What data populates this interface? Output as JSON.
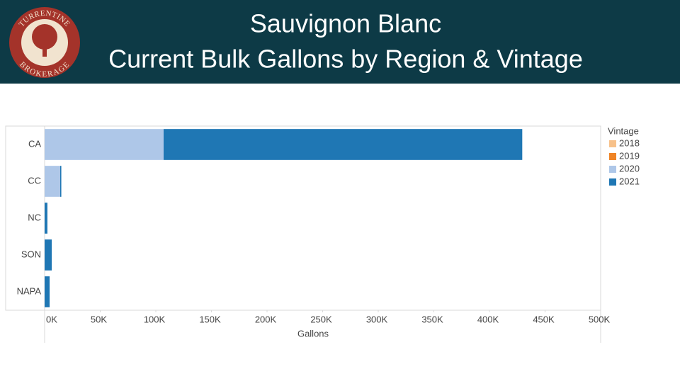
{
  "header": {
    "title_line1": "Sauvignon Blanc",
    "title_line2": "Current Bulk Gallons by Region & Vintage",
    "logo_top": "TURRENTINE",
    "logo_bottom": "BROKERAGE"
  },
  "chart_data": {
    "type": "bar",
    "orientation": "horizontal",
    "stacked": true,
    "categories": [
      "CA",
      "CC",
      "NC",
      "SON",
      "NAPA"
    ],
    "series": [
      {
        "name": "2018",
        "color": "#f7c18a",
        "values": [
          0,
          0,
          0,
          0,
          0
        ]
      },
      {
        "name": "2019",
        "color": "#ef8426",
        "values": [
          0,
          0,
          0,
          0,
          0
        ]
      },
      {
        "name": "2020",
        "color": "#aec7e8",
        "values": [
          107000,
          14000,
          0,
          0,
          0
        ]
      },
      {
        "name": "2021",
        "color": "#1f77b4",
        "values": [
          322500,
          1000,
          2500,
          6400,
          4500
        ]
      }
    ],
    "legend_title": "Vintage",
    "legend": "right",
    "x_label": "Gallons",
    "xlim": [
      0,
      500000
    ],
    "xticks": [
      {
        "value": 0,
        "label": "0K"
      },
      {
        "value": 50000,
        "label": "50K"
      },
      {
        "value": 100000,
        "label": "100K"
      },
      {
        "value": 150000,
        "label": "150K"
      },
      {
        "value": 200000,
        "label": "200K"
      },
      {
        "value": 250000,
        "label": "250K"
      },
      {
        "value": 300000,
        "label": "300K"
      },
      {
        "value": 350000,
        "label": "350K"
      },
      {
        "value": 400000,
        "label": "400K"
      },
      {
        "value": 450000,
        "label": "450K"
      },
      {
        "value": 500000,
        "label": "500K"
      }
    ]
  }
}
